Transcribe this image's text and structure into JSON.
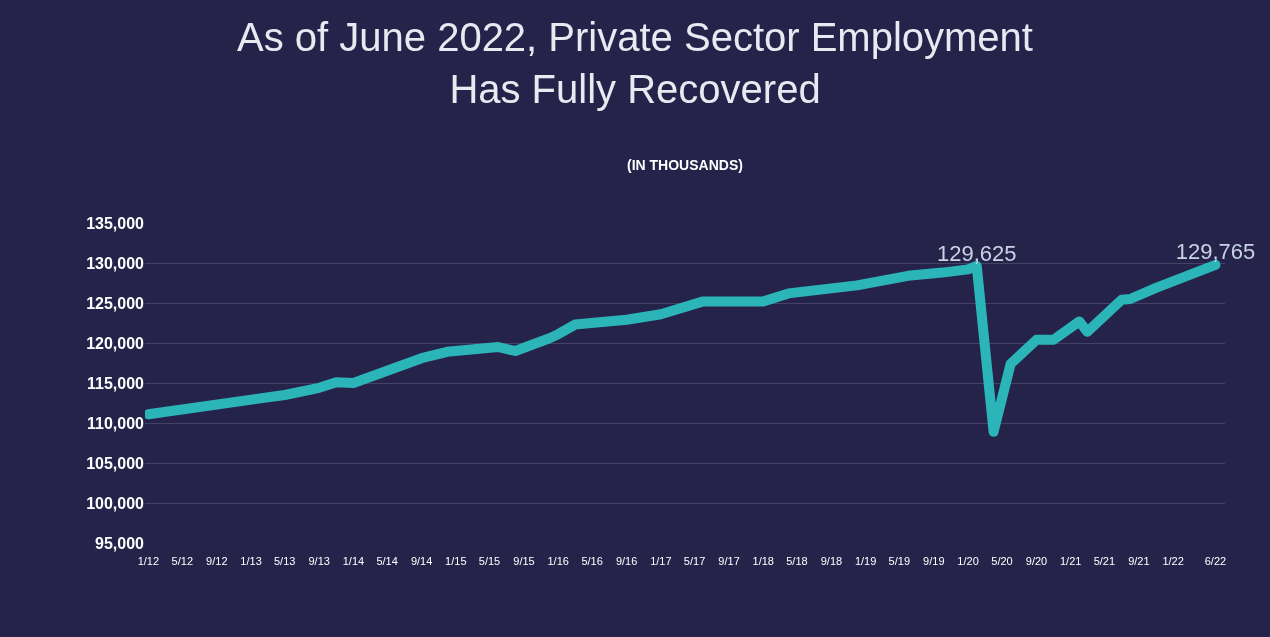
{
  "chart_data": {
    "type": "line",
    "title": "As of June 2022, Private Sector Employment\nHas Fully Recovered",
    "subtitle": "(IN THOUSANDS)",
    "x": [
      "2012-01",
      "2013-05",
      "2013-09",
      "2013-11",
      "2014-01",
      "2014-09",
      "2014-12",
      "2015-06",
      "2015-08",
      "2015-12",
      "2016-01",
      "2016-03",
      "2016-09",
      "2017-01",
      "2017-06",
      "2018-01",
      "2018-04",
      "2018-12",
      "2019-06",
      "2019-10",
      "2020-01",
      "2020-02",
      "2020-04",
      "2020-06",
      "2020-09",
      "2020-11",
      "2021-02",
      "2021-03",
      "2021-07",
      "2021-08",
      "2021-11",
      "2022-06"
    ],
    "series": [
      {
        "color": "#2bb5b8",
        "values": [
          111100,
          113500,
          114400,
          115100,
          115000,
          118100,
          118900,
          119500,
          119000,
          120600,
          121100,
          122300,
          122900,
          123600,
          125200,
          125200,
          126200,
          127200,
          128400,
          128800,
          129200,
          129625,
          108900,
          117400,
          120400,
          120400,
          122700,
          121400,
          125400,
          125500,
          126900,
          129765
        ],
        "value_labels": [
          null,
          null,
          null,
          null,
          null,
          null,
          null,
          null,
          null,
          null,
          null,
          null,
          null,
          null,
          null,
          null,
          null,
          null,
          null,
          null,
          null,
          "129,625",
          null,
          null,
          null,
          null,
          null,
          null,
          null,
          null,
          null,
          "129,765"
        ]
      }
    ],
    "xlim": [
      "2011-12-20",
      "2022-07-05"
    ],
    "xticks": [
      {
        "value": "2012-01",
        "label": "1/12"
      },
      {
        "value": "2012-05",
        "label": "5/12"
      },
      {
        "value": "2012-09",
        "label": "9/12"
      },
      {
        "value": "2013-01",
        "label": "1/13"
      },
      {
        "value": "2013-05",
        "label": "5/13"
      },
      {
        "value": "2013-09",
        "label": "9/13"
      },
      {
        "value": "2014-01",
        "label": "1/14"
      },
      {
        "value": "2014-05",
        "label": "5/14"
      },
      {
        "value": "2014-09",
        "label": "9/14"
      },
      {
        "value": "2015-01",
        "label": "1/15"
      },
      {
        "value": "2015-05",
        "label": "5/15"
      },
      {
        "value": "2015-09",
        "label": "9/15"
      },
      {
        "value": "2016-01",
        "label": "1/16"
      },
      {
        "value": "2016-05",
        "label": "5/16"
      },
      {
        "value": "2016-09",
        "label": "9/16"
      },
      {
        "value": "2017-01",
        "label": "1/17"
      },
      {
        "value": "2017-05",
        "label": "5/17"
      },
      {
        "value": "2017-09",
        "label": "9/17"
      },
      {
        "value": "2018-01",
        "label": "1/18"
      },
      {
        "value": "2018-05",
        "label": "5/18"
      },
      {
        "value": "2018-09",
        "label": "9/18"
      },
      {
        "value": "2019-01",
        "label": "1/19"
      },
      {
        "value": "2019-05",
        "label": "5/19"
      },
      {
        "value": "2019-09",
        "label": "9/19"
      },
      {
        "value": "2020-01",
        "label": "1/20"
      },
      {
        "value": "2020-05",
        "label": "5/20"
      },
      {
        "value": "2020-09",
        "label": "9/20"
      },
      {
        "value": "2021-01",
        "label": "1/21"
      },
      {
        "value": "2021-05",
        "label": "5/21"
      },
      {
        "value": "2021-09",
        "label": "9/21"
      },
      {
        "value": "2022-01",
        "label": "1/22"
      },
      {
        "value": "2022-06",
        "label": "6/22"
      }
    ],
    "ylim": [
      95000,
      135000
    ],
    "yticks": [
      {
        "value": 95000,
        "label": "95,000"
      },
      {
        "value": 100000,
        "label": "100,000"
      },
      {
        "value": 105000,
        "label": "105,000"
      },
      {
        "value": 110000,
        "label": "110,000"
      },
      {
        "value": 115000,
        "label": "115,000"
      },
      {
        "value": 120000,
        "label": "120,000"
      },
      {
        "value": 125000,
        "label": "125,000"
      },
      {
        "value": 130000,
        "label": "130,000"
      },
      {
        "value": 135000,
        "label": "135,000"
      }
    ],
    "grid": "y",
    "marker": "none",
    "line_style": "solid"
  }
}
